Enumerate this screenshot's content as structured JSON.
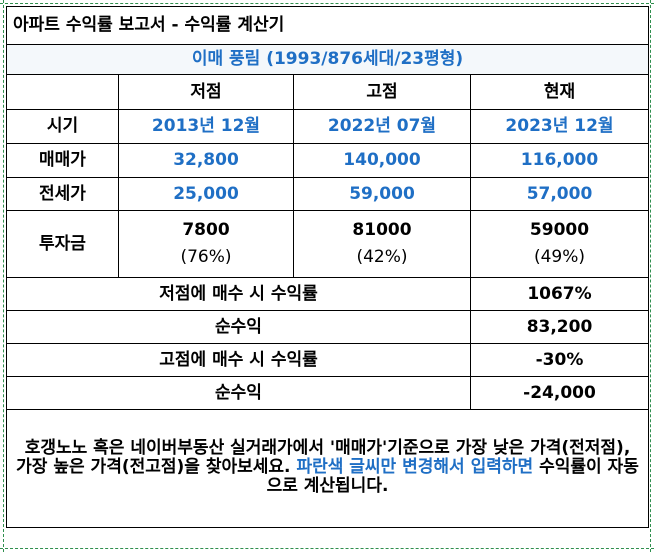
{
  "title": "아파트 수익률 보고서 - 수익률 계산기",
  "subtitle": "이매 풍림 (1993/876세대/23평형)",
  "columns": [
    "저점",
    "고점",
    "현재"
  ],
  "rows": {
    "period": {
      "label": "시기",
      "values": [
        "2013년 12월",
        "2022년 07월",
        "2023년 12월"
      ]
    },
    "sale": {
      "label": "매매가",
      "values": [
        "32,800",
        "140,000",
        "116,000"
      ]
    },
    "jeonse": {
      "label": "전세가",
      "values": [
        "25,000",
        "59,000",
        "57,000"
      ]
    },
    "invest": {
      "label": "투자금",
      "values": [
        "7800",
        "81000",
        "59000"
      ],
      "ratios": [
        "(76%)",
        "(42%)",
        "(49%)"
      ]
    }
  },
  "summary": [
    {
      "label": "저점에 매수 시 수익률",
      "value": "1067%"
    },
    {
      "label": "순수익",
      "value": "83,200"
    },
    {
      "label": "고점에 매수 시 수익률",
      "value": "-30%"
    },
    {
      "label": "순수익",
      "value": "-24,000"
    }
  ],
  "note": {
    "part1": "호갱노노 혹은 네이버부동산 실거래가에서 '매매가'기준으로 가장 낮은 가격(전저점), 가장 높은 가격(전고점)을 찾아보세요. ",
    "highlight": "파란색 글씨만 변경해서 입력하면",
    "part2": " 수익률이 자동으로 계산됩니다."
  },
  "colors": {
    "input_blue": "#1f6fc5",
    "grid_dash": "#2f8f4e"
  }
}
